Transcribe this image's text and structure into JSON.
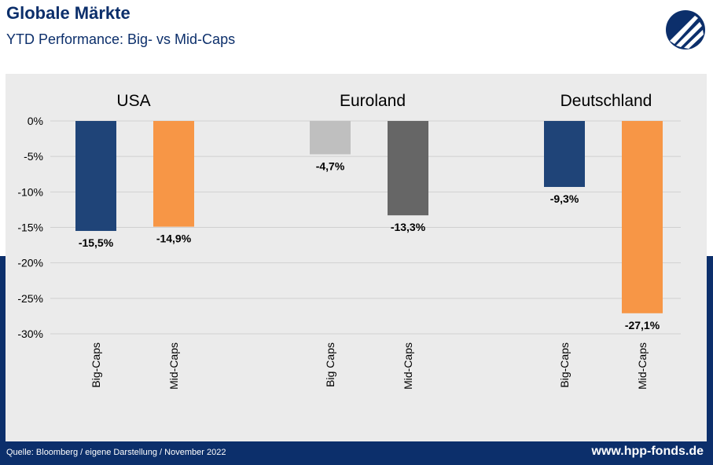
{
  "header": {
    "title": "Globale Märkte",
    "subtitle": "YTD Performance: Big- vs Mid-Caps"
  },
  "footer": {
    "source": "Quelle: Bloomberg / eigene Darstellung / November 2022",
    "url": "www.hpp-fonds.de"
  },
  "colors": {
    "navy": "#0c2f6b",
    "usa_big": "#1f4478",
    "usa_mid": "#f79646",
    "eu_big": "#bfbfbf",
    "eu_mid": "#666666",
    "de_big": "#1f4478",
    "de_mid": "#f79646",
    "panel_bg": "#ebebeb",
    "grid": "#d0d0d0"
  },
  "chart_data": {
    "type": "bar",
    "groups": [
      "USA",
      "Euroland",
      "Deutschland"
    ],
    "categories": [
      "Big-Caps",
      "Mid-Caps",
      "Big Caps",
      "Mid-Caps",
      "Big-Caps",
      "Mid-Caps"
    ],
    "group_index": [
      0,
      0,
      1,
      1,
      2,
      2
    ],
    "values": [
      -15.5,
      -14.9,
      -4.7,
      -13.3,
      -9.3,
      -27.1
    ],
    "value_labels": [
      "-15,5%",
      "-14,9%",
      "-4,7%",
      "-13,3%",
      "-9,3%",
      "-27,1%"
    ],
    "bar_colors": [
      "#1f4478",
      "#f79646",
      "#bfbfbf",
      "#666666",
      "#1f4478",
      "#f79646"
    ],
    "yticks": [
      0,
      -5,
      -10,
      -15,
      -20,
      -25,
      -30
    ],
    "ytick_labels": [
      "0%",
      "-5%",
      "-10%",
      "-15%",
      "-20%",
      "-25%",
      "-30%"
    ],
    "ylim": [
      -30,
      0
    ],
    "grid": true
  }
}
